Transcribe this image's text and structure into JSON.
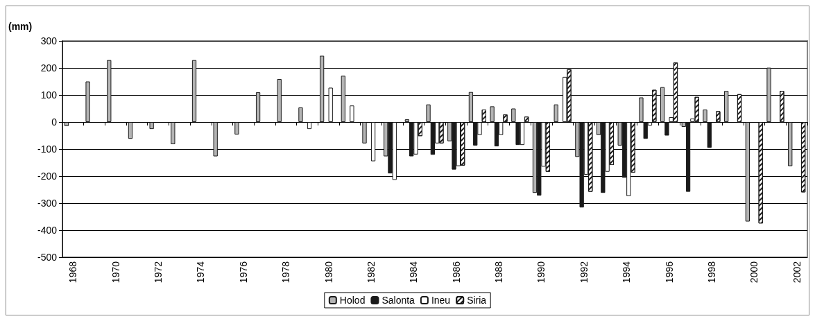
{
  "chart_data": {
    "type": "bar",
    "ylabel": "(mm)",
    "categories": [
      "1968",
      null,
      "1970",
      null,
      "1972",
      null,
      "1974",
      null,
      "1976",
      null,
      "1978",
      null,
      "1980",
      null,
      "1982",
      null,
      "1984",
      null,
      "1986",
      null,
      "1988",
      null,
      "1990",
      null,
      "1992",
      null,
      "1994",
      null,
      "1996",
      null,
      "1998",
      null,
      "2000",
      null,
      "2002"
    ],
    "series": [
      {
        "name": "Holod",
        "color": "#b4b4b4",
        "values": [
          -15,
          150,
          229,
          -62,
          -26,
          -82,
          229,
          -127,
          -46,
          110,
          159,
          54,
          245,
          171,
          -79,
          -127,
          10,
          65,
          -71,
          111,
          58,
          50,
          -262,
          65,
          -129,
          -48,
          -87,
          91,
          129,
          -18,
          46,
          115,
          -368,
          201,
          -163
        ]
      },
      {
        "name": "Salonta",
        "color": "#1a1a1a",
        "values": [
          null,
          null,
          null,
          null,
          null,
          null,
          null,
          null,
          null,
          null,
          null,
          null,
          null,
          null,
          null,
          -190,
          -127,
          -121,
          -176,
          -87,
          -90,
          -85,
          -272,
          null,
          -316,
          -262,
          -206,
          -62,
          -50,
          -258,
          -95,
          null,
          null,
          null,
          null
        ]
      },
      {
        "name": "Ineu",
        "color": "#ffffff",
        "values": [
          null,
          null,
          null,
          null,
          null,
          null,
          null,
          null,
          null,
          null,
          null,
          -26,
          127,
          61,
          -145,
          -214,
          -120,
          -79,
          -163,
          -48,
          -48,
          -85,
          -165,
          167,
          -195,
          -184,
          -274,
          -13,
          18,
          13,
          null,
          null,
          null,
          null,
          null
        ]
      },
      {
        "name": "Siria",
        "color": "#ffffff",
        "values": [
          null,
          null,
          null,
          null,
          null,
          null,
          null,
          null,
          null,
          null,
          null,
          null,
          null,
          null,
          null,
          null,
          -52,
          -79,
          -161,
          46,
          28,
          20,
          -184,
          195,
          -258,
          -159,
          -187,
          119,
          220,
          93,
          40,
          103,
          -375,
          115,
          -260
        ]
      }
    ],
    "ylim": [
      -500,
      300
    ],
    "yticks": [
      -500,
      -400,
      -300,
      -200,
      -100,
      0,
      100,
      200,
      300
    ],
    "grid": "y",
    "legend": "bottom"
  }
}
